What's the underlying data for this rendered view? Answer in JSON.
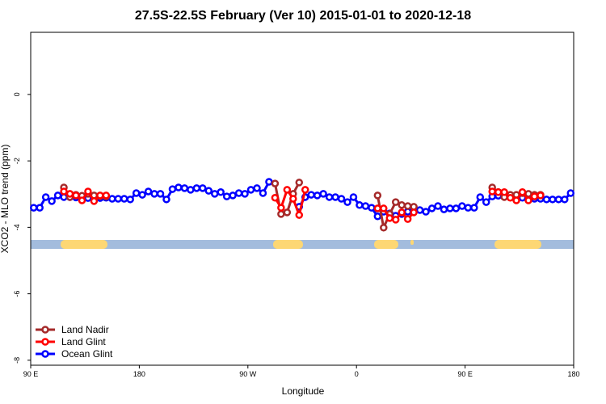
{
  "chart_data": {
    "type": "line",
    "title": "27.5S-22.5S February (Ver 10)   2015-01-01 to 2020-12-18",
    "x_label": "Longitude",
    "y_label": "XCO2 - MLO trend (ppm)",
    "x": [
      92.5,
      97.5,
      102.5,
      107.5,
      112.5,
      117.5,
      122.5,
      127.5,
      132.5,
      137.5,
      142.5,
      147.5,
      152.5,
      157.5,
      162.5,
      167.5,
      172.5,
      177.5,
      182.5,
      187.5,
      192.5,
      197.5,
      202.5,
      207.5,
      212.5,
      217.5,
      222.5,
      227.5,
      232.5,
      237.5,
      242.5,
      247.5,
      252.5,
      257.5,
      262.5,
      267.5,
      272.5,
      277.5,
      282.5,
      287.5,
      292.5,
      297.5,
      302.5,
      307.5,
      312.5,
      317.5,
      322.5,
      327.5,
      332.5,
      337.5,
      342.5,
      347.5,
      352.5,
      357.5,
      362.5,
      367.5,
      372.5,
      377.5,
      382.5,
      387.5,
      392.5,
      397.5,
      402.5,
      407.5,
      412.5,
      417.5,
      422.5,
      427.5,
      432.5,
      437.5,
      442.5,
      447.5,
      452.5,
      457.5,
      462.5,
      467.5,
      472.5,
      477.5,
      482.5,
      487.5,
      492.5,
      497.5,
      502.5,
      507.5,
      512.5,
      517.5,
      522.5,
      527.5,
      532.5,
      537.5
    ],
    "series": [
      {
        "name": "Ocean Glint",
        "color": "#0000ff",
        "values": [
          -3.41,
          -3.41,
          -3.09,
          -3.21,
          -3.04,
          -3.09,
          -3.09,
          -3.1,
          -3.1,
          -3.12,
          -3.12,
          -3.12,
          -3.11,
          -3.14,
          -3.14,
          -3.14,
          -3.16,
          -2.97,
          -3.02,
          -2.92,
          -2.99,
          -2.99,
          -3.16,
          -2.85,
          -2.8,
          -2.82,
          -2.87,
          -2.82,
          -2.82,
          -2.9,
          -2.99,
          -2.94,
          -3.07,
          -3.04,
          -2.97,
          -2.99,
          -2.87,
          -2.82,
          -2.97,
          -2.63,
          null,
          null,
          null,
          null,
          -3.38,
          -3.09,
          -3.02,
          -3.04,
          -2.99,
          -3.09,
          -3.09,
          -3.14,
          -3.24,
          -3.09,
          -3.33,
          -3.36,
          -3.41,
          -3.67,
          -3.53,
          -3.58,
          -3.65,
          -3.6,
          -3.53,
          -3.43,
          -3.48,
          -3.53,
          -3.43,
          -3.36,
          -3.46,
          -3.43,
          -3.43,
          -3.36,
          -3.41,
          -3.41,
          -3.09,
          -3.24,
          -3.07,
          -3.05,
          -3.05,
          -3.06,
          -3.07,
          -3.11,
          -3.14,
          -3.14,
          -3.14,
          -3.16,
          -3.16,
          -3.16,
          -3.16,
          -2.97
        ]
      },
      {
        "name": "Land Nadir",
        "color": "#a52a2a",
        "values": [
          null,
          null,
          null,
          null,
          null,
          -2.8,
          -3.09,
          -3.02,
          -3.05,
          -2.99,
          -3.04,
          -3.06,
          -3.07,
          null,
          null,
          null,
          null,
          null,
          null,
          null,
          null,
          null,
          null,
          null,
          null,
          null,
          null,
          null,
          null,
          null,
          null,
          null,
          null,
          null,
          null,
          null,
          null,
          null,
          null,
          null,
          -2.68,
          -3.6,
          -3.55,
          -2.99,
          -2.65,
          null,
          null,
          null,
          null,
          null,
          null,
          null,
          null,
          null,
          null,
          null,
          null,
          -3.04,
          -4.01,
          -3.6,
          -3.24,
          -3.33,
          -3.36,
          -3.38,
          null,
          null,
          null,
          null,
          null,
          null,
          null,
          null,
          null,
          null,
          null,
          null,
          -2.8,
          -2.94,
          -3.09,
          -3.02,
          -3.02,
          -2.97,
          -2.99,
          -3.02,
          -3.02,
          null,
          null,
          null,
          null,
          null
        ]
      },
      {
        "name": "Land Glint",
        "color": "#ff0000",
        "values": [
          null,
          null,
          null,
          null,
          null,
          -2.92,
          -2.99,
          -3.04,
          -3.19,
          -2.92,
          -3.21,
          -3.04,
          -3.04,
          null,
          null,
          null,
          null,
          null,
          null,
          null,
          null,
          null,
          null,
          null,
          null,
          null,
          null,
          null,
          null,
          null,
          null,
          null,
          null,
          null,
          null,
          null,
          null,
          null,
          null,
          null,
          -3.11,
          -3.41,
          -2.87,
          -3.14,
          -3.63,
          -2.87,
          null,
          null,
          null,
          null,
          null,
          null,
          null,
          null,
          null,
          null,
          null,
          -3.43,
          -3.43,
          -3.72,
          -3.77,
          -3.55,
          -3.75,
          -3.55,
          null,
          null,
          null,
          null,
          null,
          null,
          null,
          null,
          null,
          null,
          null,
          null,
          -2.92,
          -2.94,
          -2.94,
          -3.11,
          -3.19,
          -2.94,
          -3.19,
          -3.07,
          -3.04,
          null,
          null,
          null,
          null,
          null
        ]
      }
    ],
    "xlim": [
      90,
      540
    ],
    "xticks": [
      {
        "value": 90,
        "label": "90 E"
      },
      180,
      {
        "value": 270,
        "label": "90 W"
      },
      {
        "value": 360,
        "label": "0"
      },
      {
        "value": 450,
        "label": "90 E"
      },
      {
        "value": 540,
        "label": "180"
      }
    ],
    "ylim": [
      -8.15,
      1.87
    ],
    "yticks": [
      0,
      -2,
      -4,
      -6,
      -8
    ],
    "legend": "bottom-left",
    "grid": false
  }
}
